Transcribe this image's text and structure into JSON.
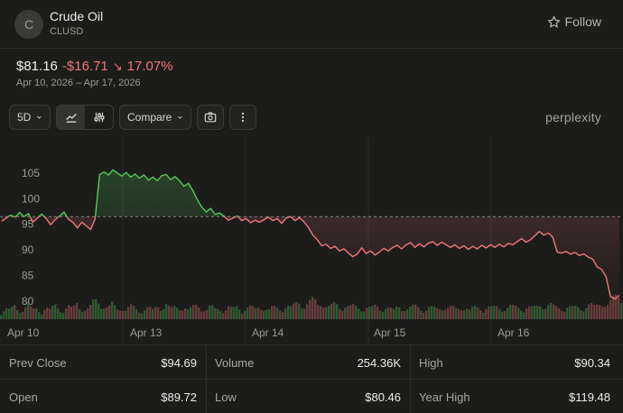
{
  "asset": {
    "initial": "C",
    "name": "Crude Oil",
    "ticker": "CLUSD"
  },
  "follow": {
    "label": "Follow",
    "icon": "star-icon"
  },
  "quote": {
    "price": "$81.16",
    "change": "-$16.71",
    "change_pct": "17.07%",
    "direction": "down",
    "range": "Apr 10, 2026 – Apr 17, 2026"
  },
  "toolbar": {
    "period": "5D",
    "compare": "Compare",
    "brand": "perplexity",
    "icons": [
      "line-chart-icon",
      "indicator-sliders-icon",
      "camera-icon",
      "more-icon"
    ]
  },
  "colors": {
    "up": "#55c85a",
    "down": "#f07878",
    "background": "#1c1c1b"
  },
  "chart_data": {
    "type": "line",
    "y_ticks": [
      "105",
      "100",
      "95",
      "90",
      "85",
      "80"
    ],
    "x_ticks": [
      "Apr 10",
      "Apr 13",
      "Apr 14",
      "Apr 15",
      "Apr 16"
    ],
    "reference_line": 96.5,
    "ylim": [
      76.5,
      112
    ],
    "series": [
      {
        "values": [
          95.6,
          96.2,
          96.8,
          96.4,
          97.3,
          96.5,
          97.1,
          95.4,
          96.2,
          97.0,
          96.1,
          94.9,
          95.9,
          96.6,
          97.4,
          96.0,
          95.4,
          94.3,
          95.4,
          94.7,
          94.0,
          96.0,
          104.7,
          105.2,
          104.6,
          105.6,
          105.0,
          104.4,
          105.1,
          104.2,
          104.8,
          104.0,
          104.6,
          103.6,
          104.2,
          103.5,
          104.5,
          104.7,
          103.7,
          104.3,
          103.5,
          102.4,
          103.0,
          101.6,
          99.8,
          98.4,
          97.4,
          98.1,
          96.9,
          97.2,
          96.6,
          95.8,
          96.2,
          96.6,
          95.7,
          96.1,
          95.3,
          95.8,
          95.4,
          95.9,
          96.4,
          95.7,
          96.1,
          95.2,
          96.2,
          96.5,
          95.7,
          96.3,
          95.5,
          94.4,
          92.9,
          92.0,
          90.8,
          91.1,
          90.3,
          90.7,
          89.8,
          90.2,
          89.4,
          88.7,
          89.2,
          90.4,
          89.3,
          89.8,
          89.0,
          89.6,
          90.3,
          89.8,
          90.5,
          90.9,
          90.2,
          91.0,
          91.4,
          90.5,
          91.2,
          90.6,
          91.3,
          91.6,
          90.9,
          91.5,
          91.0,
          90.5,
          91.0,
          90.3,
          90.8,
          90.1,
          90.7,
          90.2,
          90.9,
          90.4,
          91.0,
          90.5,
          91.1,
          90.6,
          91.3,
          91.0,
          91.6,
          92.2,
          91.5,
          92.0,
          92.8,
          93.6,
          92.9,
          93.3,
          92.5,
          89.6,
          89.4,
          89.7,
          89.2,
          89.5,
          88.9,
          89.2,
          88.6,
          88.2,
          86.7,
          86.2,
          84.8,
          80.9,
          80.46,
          81.16
        ]
      }
    ],
    "volume": [
      0.3,
      0.5,
      0.4,
      0.6,
      0.35,
      0.45,
      0.7,
      0.4,
      0.5,
      0.3,
      0.55,
      0.4,
      0.65,
      0.5,
      0.35,
      0.6,
      0.45,
      0.75,
      0.5,
      0.4,
      0.55,
      0.9,
      0.8,
      0.6,
      0.5,
      0.7,
      0.45,
      0.55,
      0.4,
      0.6,
      0.5,
      0.35,
      0.45,
      0.55,
      0.4,
      0.6,
      0.5,
      0.7,
      0.45,
      0.55,
      0.5,
      0.6,
      0.4,
      0.55,
      0.65,
      0.5,
      0.4,
      0.6,
      0.45,
      0.5,
      0.35,
      0.55,
      0.45,
      0.6,
      0.4,
      0.5,
      0.55,
      0.45,
      0.6,
      0.5,
      0.4,
      0.55,
      0.5,
      0.45,
      0.6,
      0.5,
      0.7,
      0.8,
      0.6,
      0.75,
      0.9,
      0.65,
      0.8,
      0.55,
      0.6,
      0.7,
      0.5,
      0.65,
      0.55,
      0.6,
      0.5,
      0.45,
      0.55,
      0.5,
      0.6,
      0.45,
      0.55,
      0.5,
      0.4,
      0.6,
      0.5,
      0.45,
      0.55,
      0.6,
      0.5,
      0.4,
      0.55,
      0.5,
      0.45,
      0.6,
      0.5,
      0.55,
      0.45,
      0.5,
      0.6,
      0.4,
      0.55,
      0.5,
      0.45,
      0.6,
      0.5,
      0.55,
      0.45,
      0.5,
      0.6,
      0.55,
      0.5,
      0.45,
      0.6,
      0.5,
      0.55,
      0.65,
      0.6,
      0.7,
      0.55,
      0.5,
      0.45,
      0.6,
      0.5,
      0.55,
      0.45,
      0.6,
      0.7,
      0.55,
      0.65,
      0.8,
      0.7,
      0.9,
      1.0,
      0.85
    ]
  },
  "stats": [
    [
      {
        "label": "Prev Close",
        "value": "$94.69"
      },
      {
        "label": "Volume",
        "value": "254.36K"
      },
      {
        "label": "High",
        "value": "$90.34"
      }
    ],
    [
      {
        "label": "Open",
        "value": "$89.72"
      },
      {
        "label": "Low",
        "value": "$80.46"
      },
      {
        "label": "Year High",
        "value": "$119.48"
      }
    ]
  ]
}
